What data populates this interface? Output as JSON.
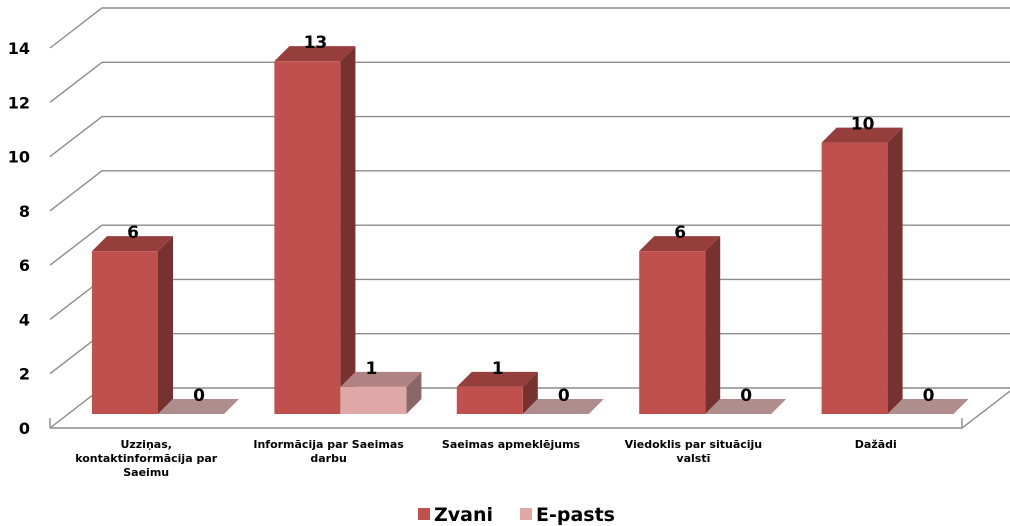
{
  "chart_data": {
    "type": "bar",
    "categories": [
      "Uzziņas, kontaktinformācija par Saeimu",
      "Informācija par Saeimas darbu",
      "Saeimas apmeklējums",
      "Viedoklis par situāciju valstī",
      "Dažādi"
    ],
    "category_lines": [
      [
        "Uzziņas,",
        "kontaktinformācija par",
        "Saeimu"
      ],
      [
        "Informācija par Saeimas",
        "darbu"
      ],
      [
        "Saeimas apmeklējums"
      ],
      [
        "Viedoklis par situāciju",
        "valstī"
      ],
      [
        "Dažādi"
      ]
    ],
    "series": [
      {
        "name": "Zvani",
        "values": [
          6,
          13,
          1,
          6,
          10
        ],
        "color": "#c0504d"
      },
      {
        "name": "E-pasts",
        "values": [
          0,
          1,
          0,
          0,
          0
        ],
        "color": "#dfa8a7"
      }
    ],
    "ylim": [
      0,
      14
    ],
    "yticks": [
      0,
      2,
      4,
      6,
      8,
      10,
      12,
      14
    ],
    "grid": true,
    "legend_position": "bottom",
    "style": "3d-column"
  }
}
